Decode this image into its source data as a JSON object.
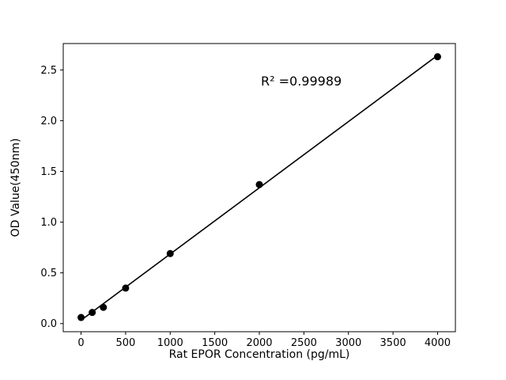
{
  "figure": {
    "background": "#ffffff"
  },
  "chart_data": {
    "type": "scatter",
    "x": [
      0,
      125,
      250,
      500,
      1000,
      2000,
      4000
    ],
    "y": [
      0.06,
      0.11,
      0.16,
      0.35,
      0.69,
      1.37,
      2.63
    ],
    "fit_line": true,
    "annotation": "R² =0.99989",
    "title": "",
    "xlabel": "Rat EPOR Concentration (pg/mL)",
    "ylabel": "OD Value(450nm)",
    "xticks": [
      0,
      500,
      1000,
      1500,
      2000,
      2500,
      3000,
      3500,
      4000
    ],
    "yticks": [
      0.0,
      0.5,
      1.0,
      1.5,
      2.0,
      2.5
    ],
    "xlim": [
      -200,
      4200
    ],
    "ylim": [
      -0.08,
      2.76
    ],
    "marker_color": "#000000",
    "line_color": "#000000",
    "grid": false,
    "legend_position": null
  }
}
